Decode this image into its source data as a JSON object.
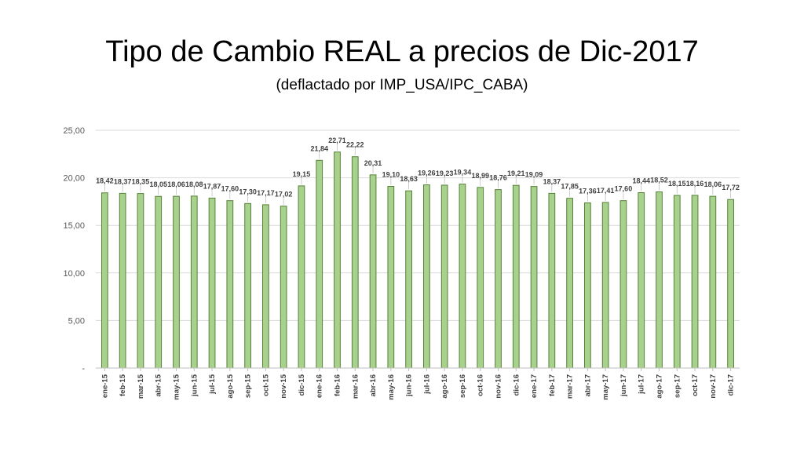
{
  "header": {
    "title": "Tipo de Cambio REAL a precios de Dic-2017",
    "subtitle": "(deflactado por IMP_USA/IPC_CABA)"
  },
  "colors": {
    "bar_fill": "#a9d18e",
    "bar_stroke": "#548235",
    "grid": "#d9d9d9"
  },
  "chart_data": {
    "type": "bar",
    "title": "Tipo de Cambio REAL a precios de Dic-2017",
    "subtitle": "(deflactado por IMP_USA/IPC_CABA)",
    "categories": [
      "ene-15",
      "feb-15",
      "mar-15",
      "abr-15",
      "may-15",
      "jun-15",
      "jul-15",
      "ago-15",
      "sep-15",
      "oct-15",
      "nov-15",
      "dic-15",
      "ene-16",
      "feb-16",
      "mar-16",
      "abr-16",
      "may-16",
      "jun-16",
      "jul-16",
      "ago-16",
      "sep-16",
      "oct-16",
      "nov-16",
      "dic-16",
      "ene-17",
      "feb-17",
      "mar-17",
      "abr-17",
      "may-17",
      "jun-17",
      "jul-17",
      "ago-17",
      "sep-17",
      "oct-17",
      "nov-17",
      "dic-17"
    ],
    "values": [
      18.42,
      18.37,
      18.35,
      18.05,
      18.06,
      18.08,
      17.87,
      17.6,
      17.3,
      17.17,
      17.02,
      19.15,
      21.84,
      22.71,
      22.22,
      20.31,
      19.1,
      18.63,
      19.26,
      19.23,
      19.34,
      18.99,
      18.76,
      19.21,
      19.09,
      18.37,
      17.85,
      17.36,
      17.41,
      17.6,
      18.44,
      18.52,
      18.15,
      18.16,
      18.06,
      17.72
    ],
    "labels": [
      "18,42",
      "18,37",
      "18,35",
      "18,05",
      "18,06",
      "18,08",
      "17,87",
      "17,60",
      "17,30",
      "17,17",
      "17,02",
      "19,15",
      "21,84",
      "22,71",
      "22,22",
      "20,31",
      "19,10",
      "18,63",
      "19,26",
      "19,23",
      "19,34",
      "18,99",
      "18,76",
      "19,21",
      "19,09",
      "18,37",
      "17,85",
      "17,36",
      "17,41",
      "17,60",
      "18,44",
      "18,52",
      "18,15",
      "18,16",
      "18,06",
      "17,72"
    ],
    "ylim": [
      0,
      25
    ],
    "yticks": [
      0,
      5,
      10,
      15,
      20,
      25
    ],
    "ytick_labels": [
      "-",
      "5,00",
      "10,00",
      "15,00",
      "20,00",
      "25,00"
    ],
    "xlabel": "",
    "ylabel": "",
    "grid": true,
    "legend": "none"
  }
}
